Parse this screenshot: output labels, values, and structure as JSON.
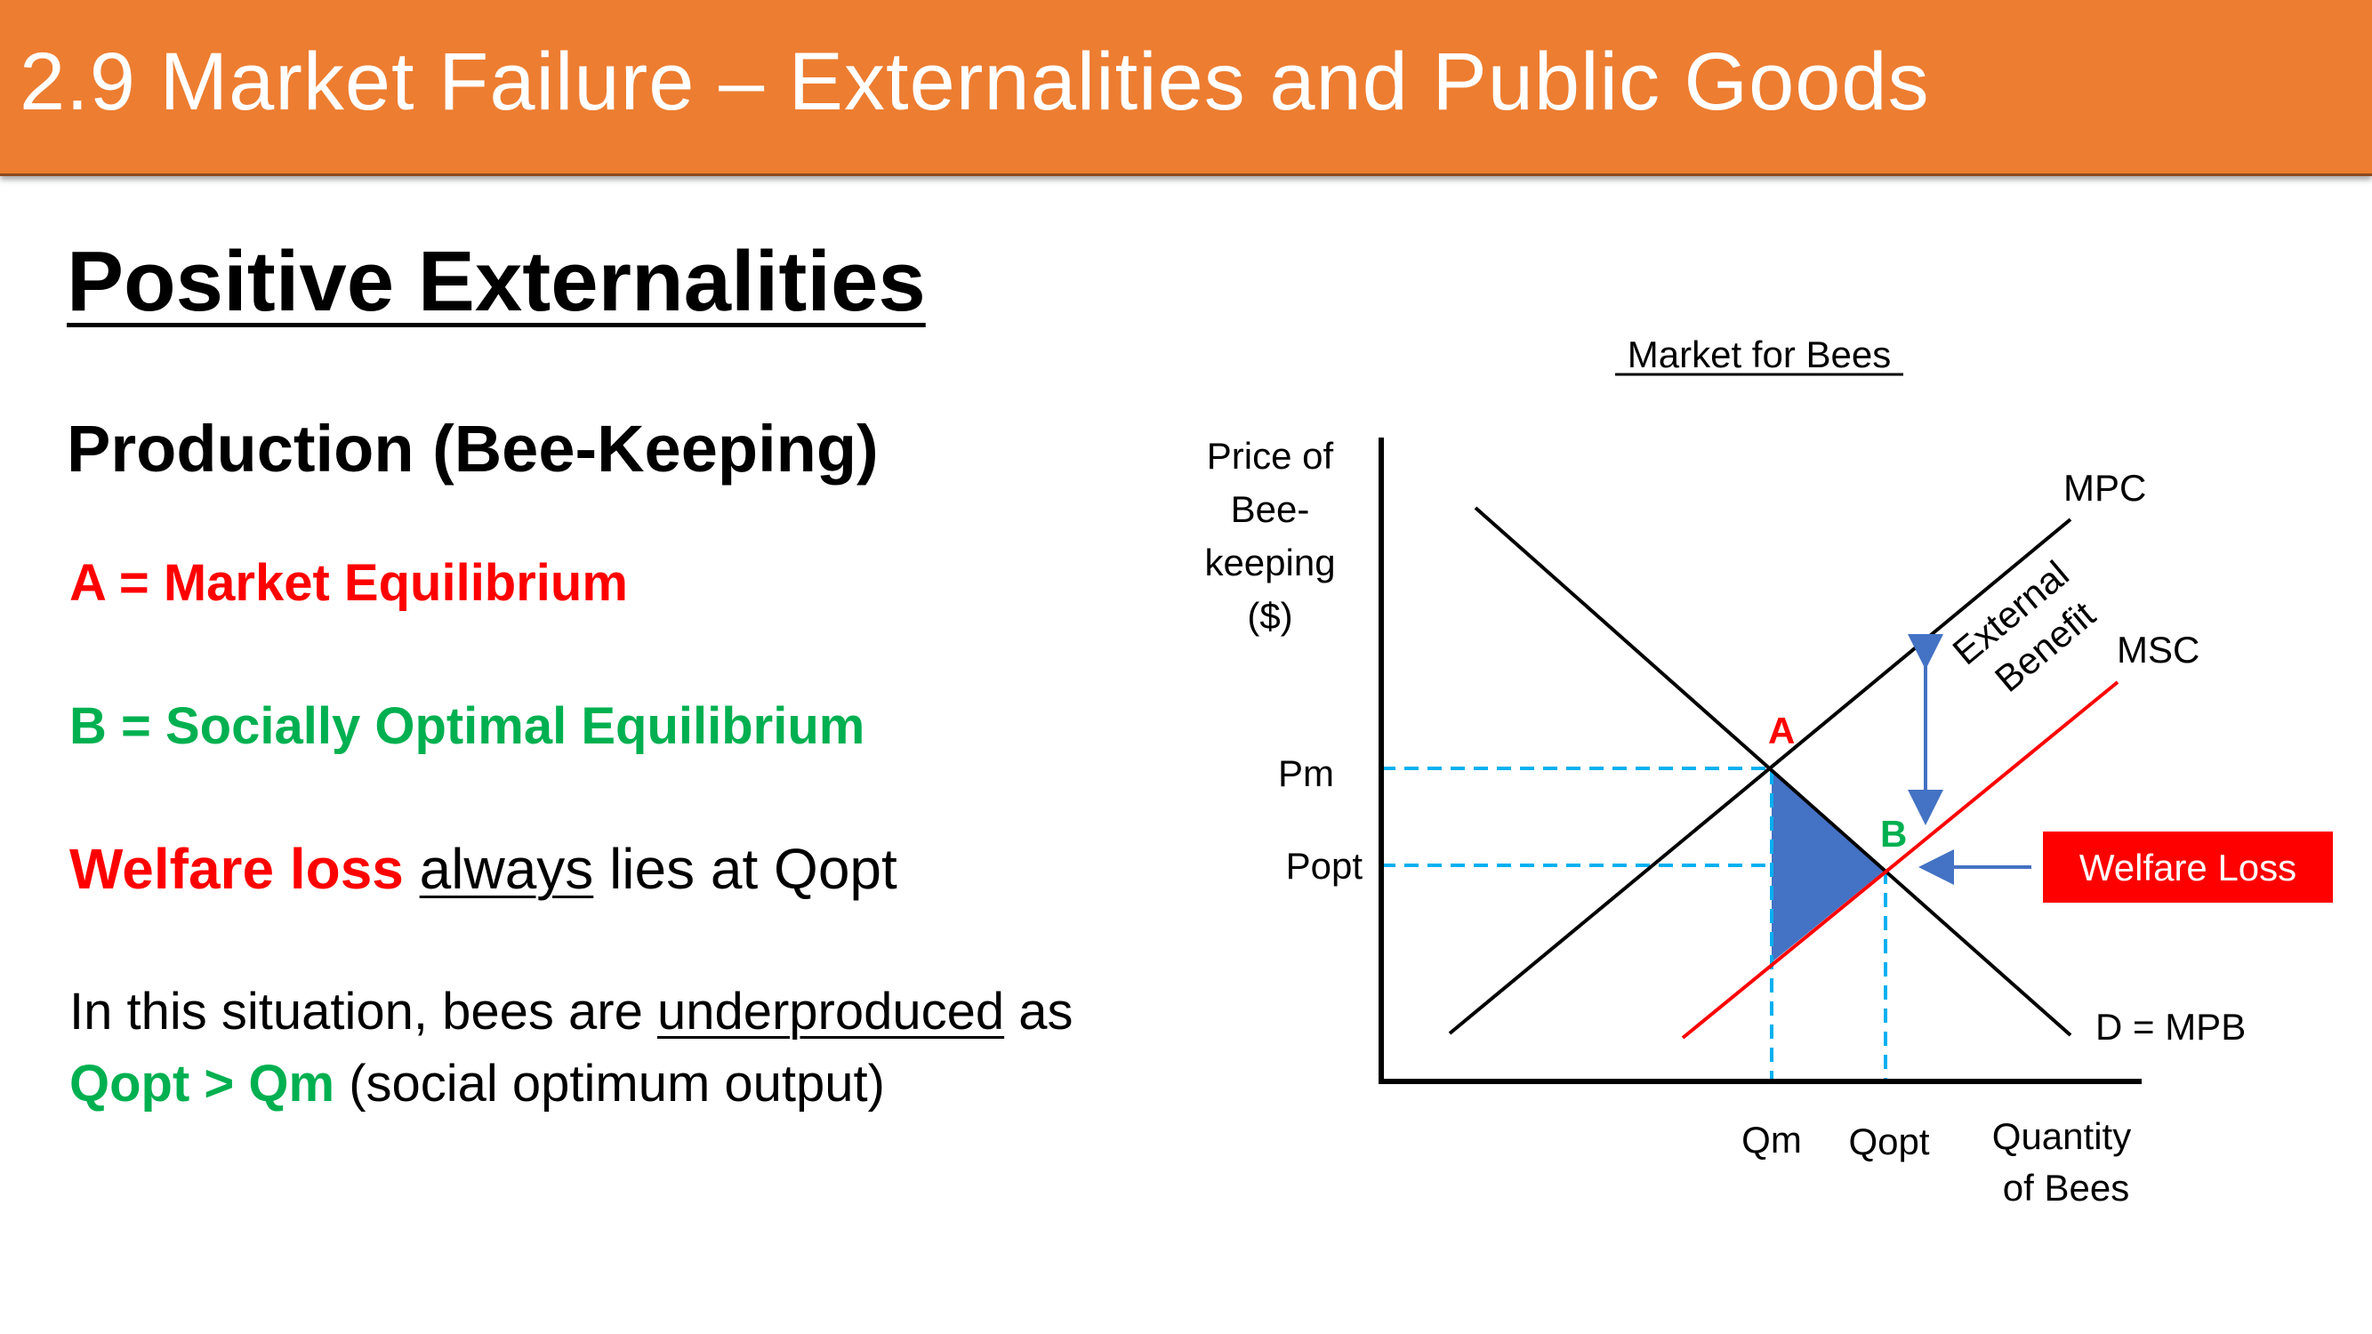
{
  "header": {
    "title": "2.9 Market Failure – Externalities and Public Goods"
  },
  "main": {
    "heading": "Positive Externalities",
    "subheading": "Production (Bee-Keeping)",
    "point_a": "A = Market Equilibrium",
    "point_b": "B = Socially Optimal Equilibrium",
    "welfare": {
      "emph": "Welfare loss",
      "ul": "always",
      "rest": " lies at Qopt"
    },
    "situation": {
      "pre": "In this situation, bees are ",
      "ul": "underproduced",
      "post": " as",
      "green": "Qopt > Qm",
      "end": " (social optimum output)"
    }
  },
  "diagram": {
    "title": "Market for Bees",
    "ylabel": [
      "Price of",
      "Bee-",
      "keeping",
      "($)"
    ],
    "xlabel": [
      "Quantity",
      "of Bees"
    ],
    "ticks": {
      "pm": "Pm",
      "popt": "Popt",
      "qm": "Qm",
      "qopt": "Qopt"
    },
    "curves": {
      "mpc": "MPC",
      "msc": "MSC",
      "demand": "D = MPB"
    },
    "points": {
      "a": "A",
      "b": "B"
    },
    "external_benefit": [
      "External",
      "Benefit"
    ],
    "welfare_box": "Welfare Loss",
    "colors": {
      "msc": "#ff0000",
      "dashed": "#00b0f0",
      "arrow": "#4472c4",
      "triangle": "#4472c4",
      "welfare_box": "#ff0000",
      "point_a": "#ff0000",
      "point_b": "#00b050"
    }
  }
}
